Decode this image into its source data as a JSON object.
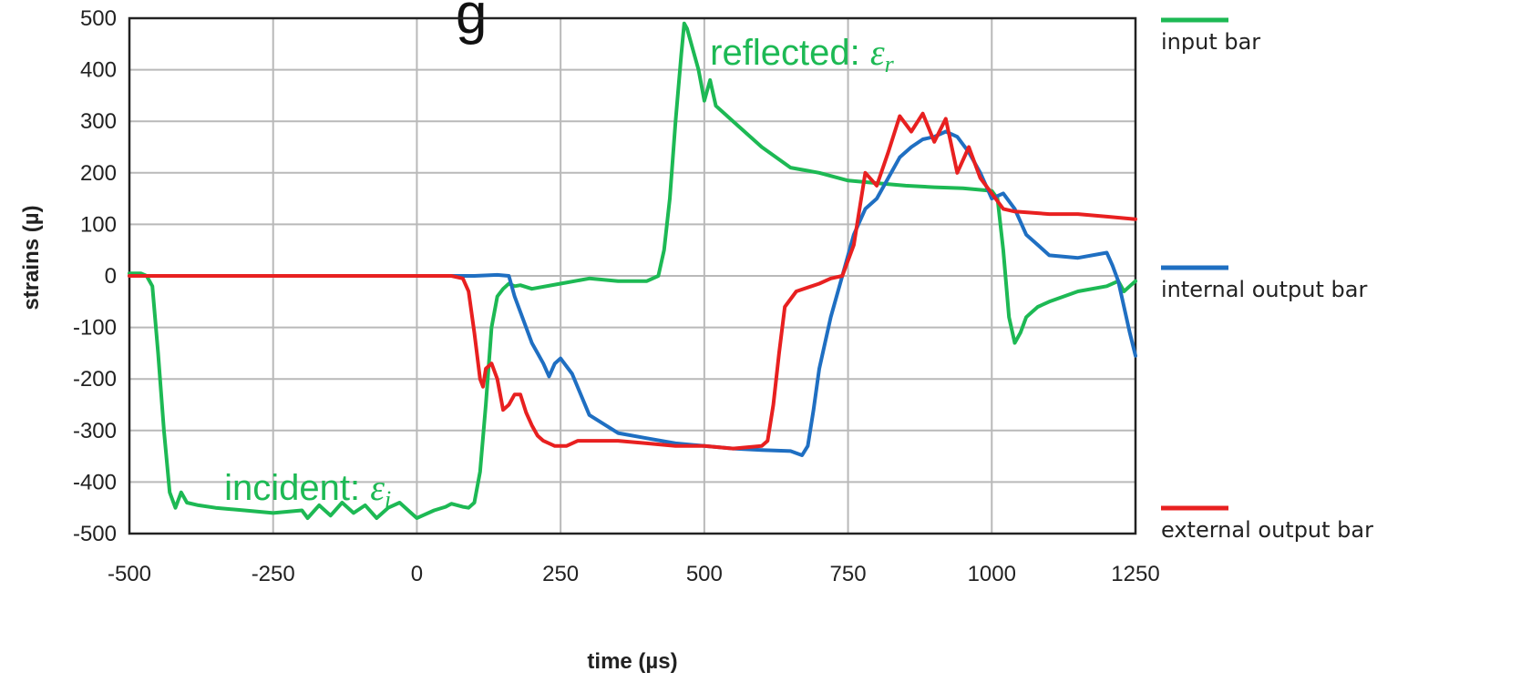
{
  "chart_data": {
    "type": "line",
    "title_fragment": "g",
    "xlabel": "time (µs)",
    "ylabel": "strains (µ)",
    "xlim": [
      -500,
      1250
    ],
    "ylim": [
      -500,
      500
    ],
    "x_ticks": [
      -500,
      -250,
      0,
      250,
      500,
      750,
      1000,
      1250
    ],
    "y_ticks": [
      -500,
      -400,
      -300,
      -200,
      -100,
      0,
      100,
      200,
      300,
      400,
      500
    ],
    "grid": true,
    "legend_position": "right",
    "annotations": [
      {
        "name": "incident",
        "text": "incident: ",
        "symbol": "ε",
        "sub": "i",
        "x": -335,
        "y": -435
      },
      {
        "name": "reflected",
        "text": "reflected: ",
        "symbol": "ε",
        "sub": "r",
        "x": 510,
        "y": 410
      }
    ],
    "series": [
      {
        "name": "input bar",
        "color": "#1db954",
        "x": [
          -500,
          -480,
          -470,
          -460,
          -450,
          -440,
          -430,
          -420,
          -410,
          -400,
          -380,
          -350,
          -300,
          -250,
          -200,
          -190,
          -170,
          -150,
          -130,
          -110,
          -90,
          -70,
          -50,
          -30,
          -10,
          0,
          10,
          30,
          50,
          60,
          80,
          90,
          100,
          110,
          120,
          130,
          140,
          150,
          160,
          170,
          180,
          200,
          250,
          300,
          350,
          400,
          420,
          430,
          440,
          450,
          460,
          465,
          470,
          480,
          490,
          500,
          510,
          520,
          530,
          550,
          600,
          650,
          700,
          750,
          800,
          850,
          900,
          950,
          1000,
          1010,
          1020,
          1030,
          1040,
          1050,
          1060,
          1070,
          1080,
          1100,
          1150,
          1200,
          1220,
          1230,
          1240,
          1250
        ],
        "y": [
          5,
          5,
          0,
          -20,
          -150,
          -300,
          -420,
          -450,
          -420,
          -440,
          -445,
          -450,
          -455,
          -460,
          -455,
          -470,
          -445,
          -465,
          -440,
          -460,
          -445,
          -470,
          -450,
          -440,
          -460,
          -470,
          -465,
          -455,
          -448,
          -442,
          -448,
          -450,
          -440,
          -380,
          -250,
          -100,
          -40,
          -25,
          -15,
          -20,
          -18,
          -25,
          -15,
          -5,
          -10,
          -10,
          0,
          50,
          150,
          300,
          430,
          490,
          480,
          440,
          400,
          340,
          380,
          330,
          320,
          300,
          250,
          210,
          200,
          185,
          180,
          175,
          172,
          170,
          165,
          150,
          50,
          -80,
          -130,
          -110,
          -80,
          -70,
          -60,
          -50,
          -30,
          -20,
          -10,
          -30,
          -20,
          -10
        ]
      },
      {
        "name": "internal output bar",
        "color": "#1f6fc2",
        "x": [
          -500,
          -300,
          0,
          100,
          140,
          160,
          170,
          180,
          190,
          200,
          210,
          220,
          230,
          240,
          250,
          270,
          300,
          350,
          400,
          450,
          500,
          550,
          600,
          650,
          670,
          680,
          690,
          700,
          720,
          740,
          760,
          780,
          800,
          820,
          840,
          860,
          880,
          900,
          920,
          940,
          960,
          980,
          1000,
          1020,
          1040,
          1060,
          1080,
          1100,
          1150,
          1200,
          1210,
          1220,
          1230,
          1240,
          1250
        ],
        "y": [
          0,
          0,
          0,
          0,
          2,
          0,
          -40,
          -70,
          -100,
          -130,
          -150,
          -170,
          -195,
          -170,
          -160,
          -190,
          -270,
          -305,
          -315,
          -325,
          -330,
          -335,
          -338,
          -340,
          -348,
          -330,
          -260,
          -180,
          -80,
          0,
          80,
          130,
          150,
          190,
          230,
          250,
          265,
          270,
          280,
          270,
          240,
          200,
          150,
          160,
          130,
          80,
          60,
          40,
          35,
          45,
          20,
          -10,
          -60,
          -110,
          -155
        ]
      },
      {
        "name": "external output bar",
        "color": "#e82020",
        "x": [
          -500,
          -300,
          0,
          60,
          80,
          90,
          100,
          110,
          115,
          120,
          130,
          140,
          150,
          160,
          170,
          180,
          190,
          200,
          210,
          220,
          240,
          260,
          280,
          300,
          350,
          400,
          450,
          500,
          550,
          600,
          610,
          620,
          630,
          640,
          660,
          700,
          720,
          740,
          760,
          780,
          800,
          820,
          840,
          860,
          880,
          900,
          920,
          940,
          960,
          980,
          1000,
          1020,
          1040,
          1100,
          1150,
          1200,
          1250
        ],
        "y": [
          0,
          0,
          0,
          0,
          -5,
          -30,
          -110,
          -200,
          -215,
          -180,
          -170,
          -200,
          -260,
          -250,
          -230,
          -230,
          -265,
          -290,
          -310,
          -320,
          -330,
          -330,
          -320,
          -320,
          -320,
          -325,
          -330,
          -330,
          -335,
          -330,
          -320,
          -250,
          -150,
          -60,
          -30,
          -15,
          -5,
          0,
          60,
          200,
          175,
          240,
          310,
          280,
          315,
          260,
          305,
          200,
          250,
          190,
          160,
          130,
          125,
          120,
          120,
          115,
          110
        ]
      }
    ]
  }
}
